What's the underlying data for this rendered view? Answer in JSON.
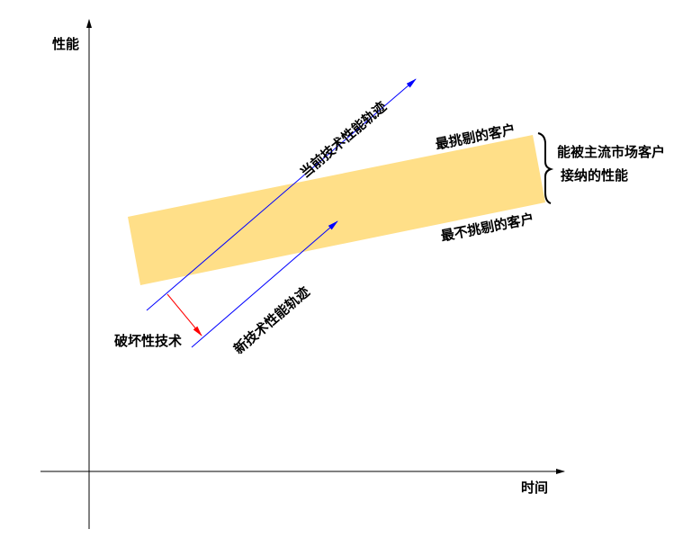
{
  "axes": {
    "y_label": "性能",
    "x_label": "时间"
  },
  "labels": {
    "current_trajectory": "当前技术性能轨迹",
    "new_trajectory": "新技术性能轨迹",
    "disruptive": "破坏性技术",
    "most_demanding": "最挑剔的客户",
    "least_demanding": "最不挑剔的客户",
    "acceptable_line1": "能被主流市场客户",
    "acceptable_line2": "接纳的性能"
  },
  "colors": {
    "band": "#FFDF88",
    "trajectory": "#0000FF",
    "gap_arrow": "#FF0000",
    "axis": "#000000"
  }
}
